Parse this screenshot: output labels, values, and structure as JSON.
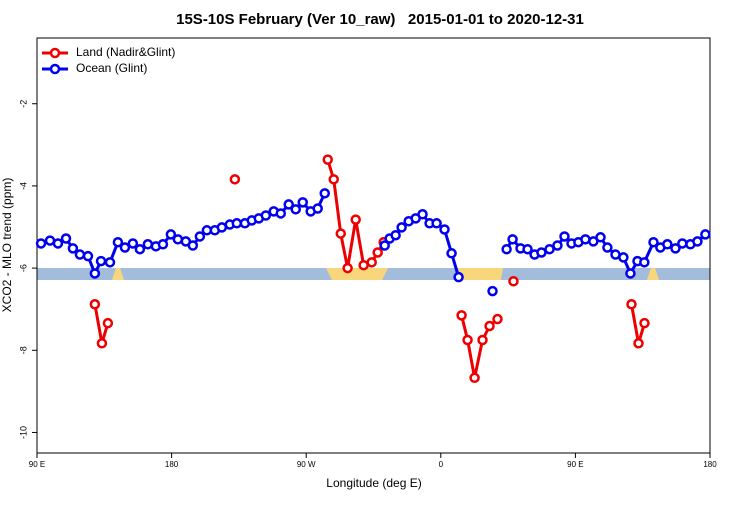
{
  "chart_data": {
    "type": "line",
    "title": "15S-10S February (Ver 10_raw)   2015-01-01 to 2020-12-31",
    "x_label": "Longitude (deg E)",
    "y_label": "XCO2 - MLO trend (ppm)",
    "xlim": [
      90,
      540
    ],
    "xticks": [
      {
        "value": 90,
        "label": "90 E"
      },
      180,
      {
        "value": 270,
        "label": "90 W"
      },
      {
        "value": 360,
        "label": "0"
      },
      {
        "value": 450,
        "label": "90 E"
      },
      {
        "value": 540,
        "label": "180"
      }
    ],
    "ylim": [
      -10.5,
      -0.4
    ],
    "yticks": [
      -10,
      -8,
      -6,
      -4,
      -2
    ],
    "legend": "top-left",
    "series": [
      {
        "name": "Land (Nadir&Glint)",
        "color": "#ee0000",
        "x": [
          128.7,
          133.4,
          137.4,
          null,
          222.3,
          null,
          284.4,
          288.4,
          293.1,
          297.7,
          303.1,
          308.4,
          313.8,
          317.8,
          321.8,
          null,
          373.9,
          377.9,
          382.6,
          387.9,
          392.6,
          397.9,
          null,
          408.6,
          null,
          487.5,
          492.2,
          496.2
        ],
        "values": [
          -6.88,
          -7.83,
          -7.34,
          null,
          -3.84,
          null,
          -3.36,
          -3.84,
          -5.16,
          -6.0,
          -4.82,
          -5.93,
          -5.86,
          -5.62,
          -5.37,
          null,
          -7.15,
          -7.75,
          -8.67,
          -7.75,
          -7.41,
          -7.24,
          null,
          -6.32,
          null,
          -6.88,
          -7.83,
          -7.34
        ]
      },
      {
        "name": "Ocean (Glint)",
        "color": "#0000ee",
        "x": [
          92.7,
          98.7,
          104,
          109.4,
          114,
          118.7,
          124.1,
          128.7,
          132.8,
          138.8,
          144.1,
          148.8,
          154.1,
          158.8,
          164.1,
          169.5,
          174.2,
          179.5,
          184.2,
          189.5,
          194.2,
          198.9,
          203.6,
          208.9,
          213.6,
          218.9,
          223.6,
          229,
          233.6,
          238.3,
          243,
          248.3,
          253,
          258.3,
          263,
          267.7,
          273,
          277.7,
          282.4,
          null,
          322.5,
          325.8,
          329.8,
          333.8,
          338.5,
          343.2,
          347.8,
          352.5,
          357.2,
          362.5,
          367.2,
          371.9,
          null,
          394.6,
          null,
          404,
          408,
          413.3,
          418,
          422.7,
          427.3,
          432.7,
          438,
          442.7,
          447.4,
          452,
          456.7,
          462,
          466.8,
          471.4,
          476.8,
          482.1,
          486.8,
          491.5,
          496.1,
          502.2,
          506.8,
          511.5,
          516.9,
          521.5,
          526.9,
          531.6,
          536.9
        ],
        "values": [
          -5.4,
          -5.33,
          -5.4,
          -5.28,
          -5.52,
          -5.67,
          -5.71,
          -6.13,
          -5.83,
          -5.86,
          -5.37,
          -5.5,
          -5.4,
          -5.54,
          -5.42,
          -5.47,
          -5.42,
          -5.18,
          -5.3,
          -5.35,
          -5.45,
          -5.23,
          -5.08,
          -5.08,
          -5.01,
          -4.94,
          -4.91,
          -4.91,
          -4.84,
          -4.79,
          -4.72,
          -4.62,
          -4.67,
          -4.45,
          -4.57,
          -4.4,
          -4.62,
          -4.55,
          -4.18,
          null,
          -5.45,
          -5.28,
          -5.2,
          -5.01,
          -4.86,
          -4.79,
          -4.69,
          -4.91,
          -4.91,
          -5.06,
          -5.64,
          -6.22,
          null,
          -6.56,
          null,
          -5.54,
          -5.3,
          -5.52,
          -5.54,
          -5.67,
          -5.62,
          -5.54,
          -5.45,
          -5.23,
          -5.4,
          -5.37,
          -5.3,
          -5.35,
          -5.25,
          -5.5,
          -5.67,
          -5.74,
          -6.13,
          -5.83,
          -5.86,
          -5.37,
          -5.5,
          -5.42,
          -5.52,
          -5.4,
          -5.42,
          -5.35,
          -5.18
        ]
      }
    ]
  }
}
